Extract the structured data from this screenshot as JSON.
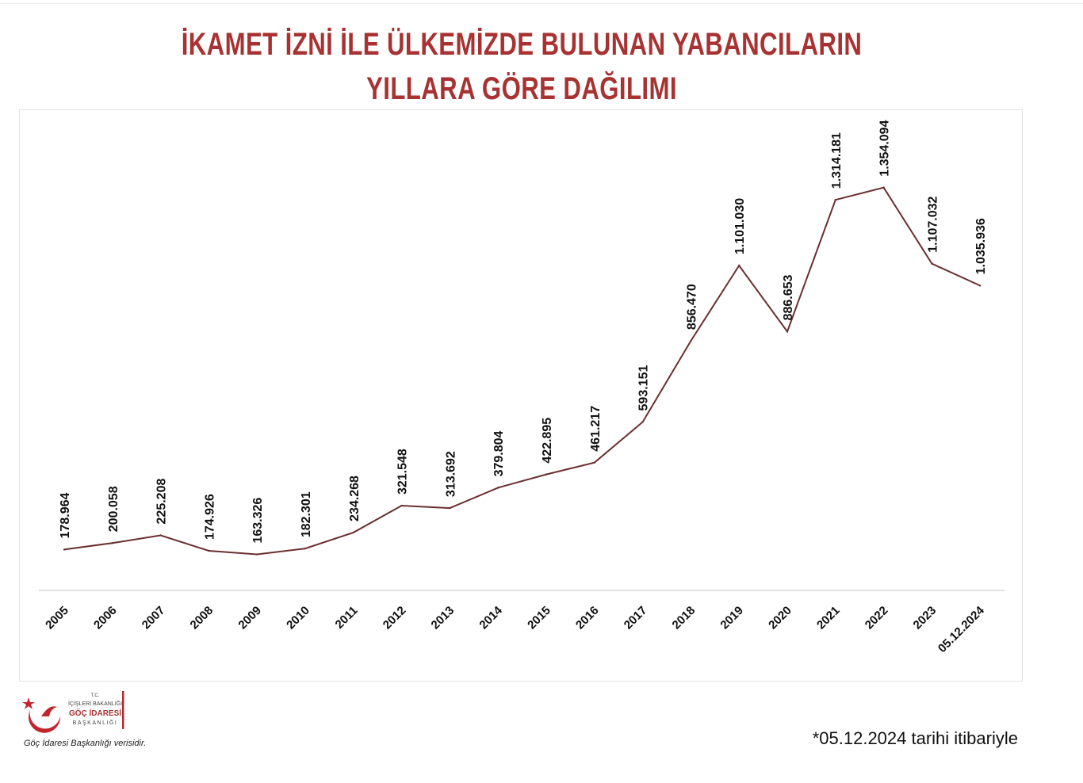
{
  "title_line1": "İKAMET İZNİ İLE ÜLKEMİZDE BULUNAN YABANCILARIN",
  "title_line2": "YILLARA GÖRE DAĞILIMI",
  "logo": {
    "line1": "T.C.",
    "line2": "İÇİŞLERİ BAKANLIĞI",
    "line3": "GÖÇ İDARESİ",
    "line4": "BAŞKANLIĞI",
    "icon": "crescent-star-bird-icon"
  },
  "source_note": "Göç İdaresi Başkanlığı verisidir.",
  "footnote": "*05.12.2024 tarihi itibariyle",
  "colors": {
    "title": "#a83232",
    "line": "#6b2f2f",
    "axis": "#d0d0d0"
  },
  "chart_data": {
    "type": "line",
    "categories": [
      "2005",
      "2006",
      "2007",
      "2008",
      "2009",
      "2010",
      "2011",
      "2012",
      "2013",
      "2014",
      "2015",
      "2016",
      "2017",
      "2018",
      "2019",
      "2020",
      "2021",
      "2022",
      "2023",
      "05.12.2024"
    ],
    "series": [
      {
        "values": [
          178964,
          200058,
          225208,
          174926,
          163326,
          182301,
          234268,
          321548,
          313692,
          379804,
          422895,
          461217,
          593151,
          856470,
          1101030,
          886653,
          1314181,
          1354094,
          1107032,
          1035936
        ],
        "labels": [
          "178.964",
          "200.058",
          "225.208",
          "174.926",
          "163.326",
          "182.301",
          "234.268",
          "321.548",
          "313.692",
          "379.804",
          "422.895",
          "461.217",
          "593.151",
          "856.470",
          "1.101.030",
          "886.653",
          "1.314.181",
          "1.354.094",
          "1.107.032",
          "1.035.936"
        ]
      }
    ],
    "ylim": [
      0,
      1500000
    ],
    "grid": false,
    "legend": "none"
  }
}
